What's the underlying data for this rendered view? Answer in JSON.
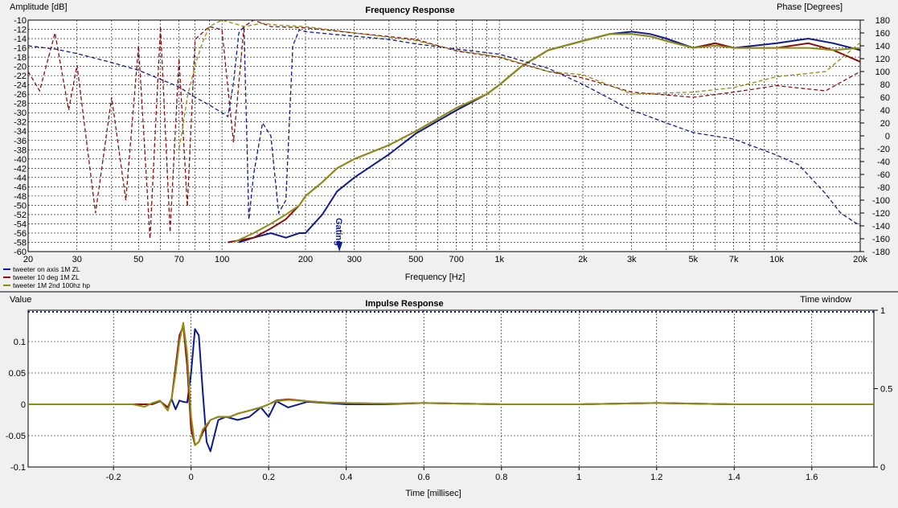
{
  "colors": {
    "blue": "#0c1b8f",
    "red": "#8b0f0f",
    "olive": "#8f8c12",
    "grid": "#000000",
    "background": "#ffffff"
  },
  "chart_data": [
    {
      "type": "line",
      "title": "Frequency Response",
      "xlabel": "Frequency [Hz]",
      "ylabel_left": "Amplitude [dB]",
      "ylabel_right": "Phase [Degrees]",
      "x_scale": "log",
      "xlim": [
        20,
        20000
      ],
      "ylim_left": [
        -60,
        -10
      ],
      "ylim_right": [
        -180,
        180
      ],
      "grid": true,
      "x_tick_labels": [
        {
          "v": 20,
          "t": "20"
        },
        {
          "v": 30,
          "t": "30"
        },
        {
          "v": 50,
          "t": "50"
        },
        {
          "v": 70,
          "t": "70"
        },
        {
          "v": 100,
          "t": "100"
        },
        {
          "v": 200,
          "t": "200"
        },
        {
          "v": 300,
          "t": "300"
        },
        {
          "v": 500,
          "t": "500"
        },
        {
          "v": 700,
          "t": "700"
        },
        {
          "v": 1000,
          "t": "1k"
        },
        {
          "v": 2000,
          "t": "2k"
        },
        {
          "v": 3000,
          "t": "3k"
        },
        {
          "v": 5000,
          "t": "5k"
        },
        {
          "v": 7000,
          "t": "7k"
        },
        {
          "v": 10000,
          "t": "10k"
        },
        {
          "v": 20000,
          "t": "20k"
        }
      ],
      "y_ticks_left": [
        -10,
        -12,
        -14,
        -16,
        -18,
        -20,
        -22,
        -24,
        -26,
        -28,
        -30,
        -32,
        -34,
        -36,
        -38,
        -40,
        -42,
        -44,
        -46,
        -48,
        -50,
        -52,
        -54,
        -56,
        -58,
        -60
      ],
      "y_ticks_right": [
        180,
        160,
        140,
        120,
        100,
        80,
        60,
        40,
        20,
        0,
        -20,
        -40,
        -60,
        -80,
        -100,
        -120,
        -140,
        -160,
        -180
      ],
      "annotations": [
        {
          "text": "Gating",
          "x": 265
        }
      ],
      "legend": [
        {
          "label": "tweeter on axis 1M ZL",
          "color": "blue"
        },
        {
          "label": "tweeter 10 deg 1M ZL",
          "color": "red"
        },
        {
          "label": "tweeter 1M 2nd 100hz hp",
          "color": "olive"
        }
      ],
      "series": [
        {
          "name": "tweeter on axis 1M ZL",
          "kind": "amplitude",
          "color": "blue",
          "style": "solid",
          "x": [
            115,
            130,
            150,
            170,
            190,
            200,
            230,
            260,
            300,
            400,
            500,
            700,
            900,
            1000,
            1200,
            1500,
            2000,
            2500,
            3000,
            3500,
            4000,
            5000,
            6000,
            7000,
            10000,
            13000,
            16000,
            20000
          ],
          "y": [
            -58,
            -57,
            -56,
            -57,
            -56,
            -56,
            -52,
            -47,
            -44,
            -39,
            -34.5,
            -29.5,
            -26,
            -24,
            -20,
            -16.5,
            -14.5,
            -13,
            -12.5,
            -13,
            -14,
            -16,
            -15,
            -16,
            -15,
            -14,
            -15,
            -16.5
          ]
        },
        {
          "name": "tweeter 10 deg 1M ZL",
          "kind": "amplitude",
          "color": "red",
          "style": "solid",
          "x": [
            105,
            130,
            150,
            170,
            190,
            200,
            230,
            260,
            300,
            400,
            500,
            700,
            900,
            1000,
            1200,
            1500,
            2000,
            2500,
            3000,
            3500,
            4000,
            5000,
            6000,
            7000,
            10000,
            13000,
            16000,
            20000
          ],
          "y": [
            -58,
            -57,
            -55,
            -53,
            -50,
            -48,
            -45,
            -42,
            -40,
            -37,
            -34,
            -29,
            -26,
            -24,
            -20,
            -16.5,
            -14.5,
            -13,
            -13,
            -13.5,
            -14.5,
            -16,
            -15,
            -16,
            -16,
            -15,
            -16.5,
            -19
          ]
        },
        {
          "name": "tweeter 1M 2nd 100hz hp",
          "kind": "amplitude",
          "color": "olive",
          "style": "solid",
          "x": [
            110,
            130,
            150,
            170,
            190,
            200,
            230,
            260,
            300,
            400,
            500,
            700,
            900,
            1000,
            1200,
            1500,
            2000,
            2500,
            3000,
            3500,
            4000,
            5000,
            6000,
            7000,
            10000,
            13000,
            16000,
            20000
          ],
          "y": [
            -58,
            -56,
            -54,
            -52,
            -50,
            -48,
            -45,
            -42,
            -40,
            -37,
            -34,
            -29,
            -26,
            -24,
            -20,
            -16.5,
            -14.5,
            -13,
            -13,
            -13.5,
            -14.5,
            -16,
            -15.5,
            -16,
            -16,
            -16,
            -16.5,
            -16
          ]
        },
        {
          "name": "tweeter on axis 1M ZL",
          "kind": "phase",
          "color": "blue",
          "style": "dashed",
          "x": [
            20,
            25,
            30,
            40,
            50,
            60,
            70,
            80,
            90,
            100,
            105,
            110,
            115,
            120,
            125,
            130,
            140,
            150,
            160,
            170,
            180,
            190,
            200,
            250,
            300,
            400,
            500,
            700,
            1000,
            1500,
            2000,
            3000,
            4000,
            5000,
            7000,
            10000,
            12000,
            15000,
            17000,
            20000
          ],
          "y": [
            140,
            135,
            128,
            114,
            102,
            88,
            76,
            60,
            48,
            36,
            30,
            82,
            160,
            170,
            -130,
            -60,
            20,
            0,
            -120,
            -100,
            140,
            165,
            162,
            158,
            155,
            150,
            143,
            135,
            127,
            105,
            80,
            40,
            20,
            5,
            -5,
            -30,
            -45,
            -90,
            -120,
            -140
          ]
        },
        {
          "name": "tweeter 10 deg 1M ZL",
          "kind": "phase",
          "color": "red",
          "style": "dashed",
          "x": [
            20,
            22,
            25,
            28,
            30,
            35,
            40,
            45,
            50,
            55,
            60,
            65,
            70,
            75,
            80,
            90,
            100,
            110,
            120,
            130,
            150,
            200,
            300,
            500,
            700,
            1000,
            1500,
            2000,
            3000,
            5000,
            7000,
            10000,
            15000,
            20000
          ],
          "y": [
            100,
            70,
            160,
            40,
            110,
            -120,
            60,
            -100,
            140,
            -160,
            170,
            -150,
            120,
            -110,
            150,
            170,
            165,
            -10,
            170,
            180,
            170,
            168,
            160,
            150,
            132,
            122,
            100,
            90,
            68,
            60,
            68,
            78,
            70,
            100
          ]
        },
        {
          "name": "tweeter 1M 2nd 100hz hp",
          "kind": "phase",
          "color": "olive",
          "style": "dashed",
          "x": [
            70,
            72,
            75,
            80,
            85,
            90,
            100,
            110,
            120,
            140,
            160,
            200,
            300,
            500,
            700,
            1000,
            1500,
            2000,
            3000,
            5000,
            7000,
            10000,
            15000,
            20000
          ],
          "y": [
            -20,
            10,
            60,
            110,
            145,
            170,
            180,
            175,
            170,
            175,
            172,
            170,
            160,
            148,
            133,
            123,
            100,
            95,
            65,
            68,
            75,
            92,
            100,
            145
          ]
        }
      ]
    },
    {
      "type": "line",
      "title": "Impulse Response",
      "xlabel": "Time [millisec]",
      "ylabel_left": "Value",
      "ylabel_right": "Time window",
      "xlim": [
        -0.42,
        1.76
      ],
      "ylim_left": [
        -0.1,
        0.15
      ],
      "ylim_right": [
        0,
        1
      ],
      "grid": true,
      "x_tick_labels": [
        {
          "v": -0.2,
          "t": "-0.2"
        },
        {
          "v": 0,
          "t": "0"
        },
        {
          "v": 0.2,
          "t": "0.2"
        },
        {
          "v": 0.4,
          "t": "0.4"
        },
        {
          "v": 0.6,
          "t": "0.6"
        },
        {
          "v": 0.8,
          "t": "0.8"
        },
        {
          "v": 1,
          "t": "1"
        },
        {
          "v": 1.2,
          "t": "1.2"
        },
        {
          "v": 1.4,
          "t": "1.4"
        },
        {
          "v": 1.6,
          "t": "1.6"
        }
      ],
      "y_ticks_left": [
        {
          "v": 0.1,
          "t": "0.1"
        },
        {
          "v": 0.05,
          "t": "0.05"
        },
        {
          "v": 0,
          "t": "0"
        },
        {
          "v": -0.05,
          "t": "-0.05"
        },
        {
          "v": -0.1,
          "t": "-0.1"
        }
      ],
      "y_ticks_right": [
        {
          "v": 1,
          "t": "1"
        },
        {
          "v": 0.5,
          "t": "0.5"
        },
        {
          "v": 0,
          "t": "0"
        }
      ],
      "time_window": {
        "value": 1,
        "color": "blue",
        "style": "dotted"
      },
      "series": [
        {
          "name": "tweeter on axis 1M ZL",
          "color": "blue",
          "x": [
            -0.42,
            -0.15,
            -0.1,
            -0.08,
            -0.06,
            -0.05,
            -0.04,
            -0.03,
            -0.02,
            -0.01,
            0,
            0.01,
            0.02,
            0.03,
            0.04,
            0.05,
            0.06,
            0.07,
            0.09,
            0.12,
            0.15,
            0.18,
            0.2,
            0.22,
            0.25,
            0.3,
            0.35,
            0.4,
            0.5,
            0.6,
            0.8,
            1.0,
            1.2,
            1.4,
            1.76
          ],
          "y": [
            0,
            0,
            0,
            0.005,
            -0.005,
            0.008,
            -0.008,
            0.006,
            0.004,
            0.003,
            0.05,
            0.12,
            0.11,
            0.02,
            -0.06,
            -0.075,
            -0.05,
            -0.025,
            -0.02,
            -0.025,
            -0.02,
            -0.005,
            -0.02,
            0.005,
            -0.005,
            0.004,
            0.002,
            0,
            0,
            0.002,
            0,
            0,
            0.002,
            0,
            0
          ]
        },
        {
          "name": "tweeter 10 deg 1M ZL",
          "color": "red",
          "x": [
            -0.42,
            -0.15,
            -0.1,
            -0.08,
            -0.06,
            -0.05,
            -0.04,
            -0.03,
            -0.02,
            -0.01,
            0,
            0.01,
            0.02,
            0.03,
            0.05,
            0.07,
            0.1,
            0.12,
            0.15,
            0.18,
            0.2,
            0.22,
            0.25,
            0.3,
            0.35,
            0.4,
            0.5,
            0.6,
            0.8,
            1.0,
            1.2,
            1.4,
            1.76
          ],
          "y": [
            0,
            0,
            0,
            0.005,
            -0.005,
            0.01,
            0.06,
            0.11,
            0.125,
            0.06,
            -0.04,
            -0.065,
            -0.06,
            -0.045,
            -0.025,
            -0.02,
            -0.02,
            -0.015,
            -0.01,
            -0.005,
            0,
            0.006,
            0.008,
            0.005,
            0.003,
            0.002,
            0.001,
            0.002,
            0,
            0,
            0.002,
            0,
            0
          ]
        },
        {
          "name": "tweeter 1M 2nd 100hz hp",
          "color": "olive",
          "x": [
            -0.42,
            -0.15,
            -0.12,
            -0.1,
            -0.08,
            -0.06,
            -0.05,
            -0.04,
            -0.03,
            -0.02,
            -0.01,
            0,
            0.01,
            0.02,
            0.03,
            0.05,
            0.07,
            0.1,
            0.12,
            0.15,
            0.18,
            0.2,
            0.22,
            0.25,
            0.3,
            0.35,
            0.4,
            0.5,
            0.6,
            0.8,
            1.0,
            1.2,
            1.4,
            1.76
          ],
          "y": [
            0,
            0,
            -0.004,
            0.002,
            0.006,
            -0.01,
            0.01,
            0.05,
            0.1,
            0.13,
            0.08,
            -0.02,
            -0.065,
            -0.06,
            -0.04,
            -0.025,
            -0.02,
            -0.02,
            -0.015,
            -0.01,
            -0.005,
            0,
            0.005,
            0.007,
            0.005,
            0.003,
            0.002,
            0.001,
            0.002,
            0,
            0,
            0.002,
            0,
            0
          ]
        }
      ]
    }
  ]
}
